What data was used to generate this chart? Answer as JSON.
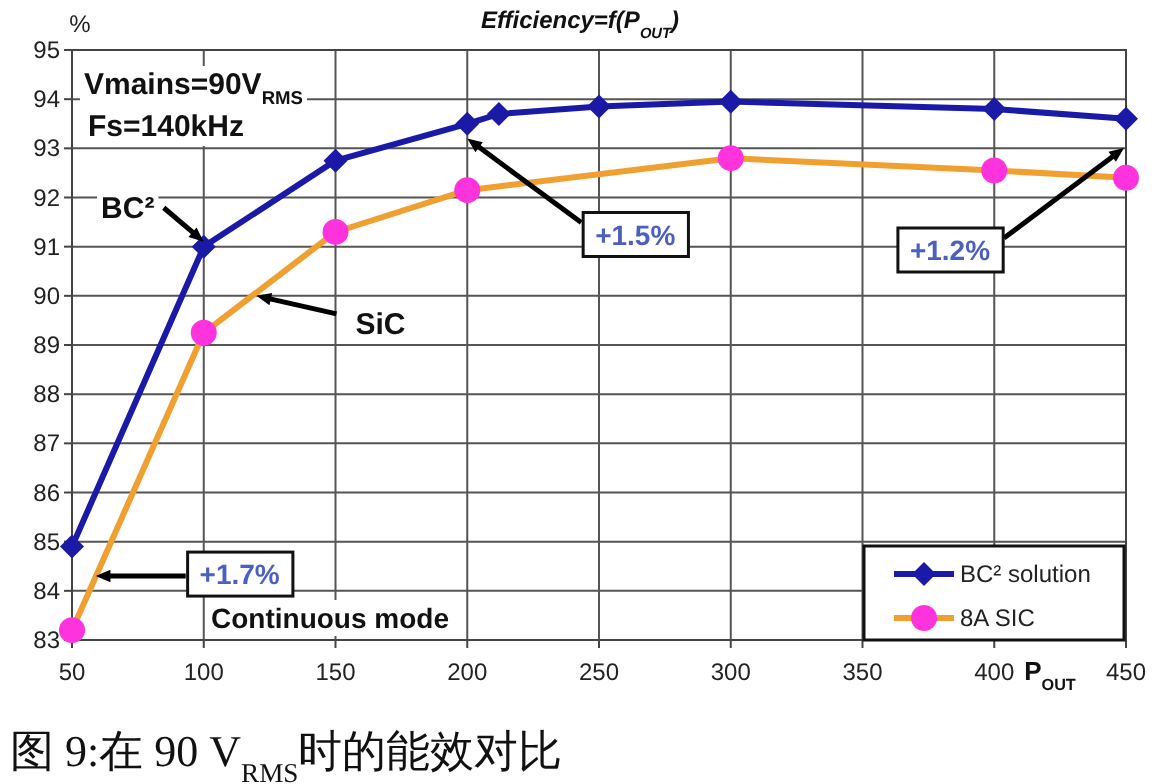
{
  "chart_data": {
    "type": "line",
    "title": "Efficiency=f(P$_{OUT}$)",
    "ylabel": "%",
    "xlabel": "P$_{OUT}$",
    "series": [
      {
        "name": "BC² solution",
        "color": "#1a1aa6",
        "marker": "diamond",
        "x": [
          50,
          100,
          150,
          200,
          212,
          250,
          300,
          400,
          450
        ],
        "values": [
          84.9,
          91.0,
          92.75,
          93.5,
          93.7,
          93.85,
          93.95,
          93.8,
          93.6
        ]
      },
      {
        "name": "8A SIC",
        "color": "#f0a030",
        "marker": "circle",
        "colors": [
          "#ff33dd",
          "#ff33dd",
          "#ff33dd",
          "#ff33dd",
          "#ff33dd",
          "#ff33dd",
          "#ff33dd"
        ],
        "x": [
          50,
          100,
          150,
          200,
          300,
          400,
          450
        ],
        "values": [
          83.2,
          89.25,
          91.3,
          92.15,
          92.8,
          92.55,
          92.4
        ]
      }
    ],
    "xlim": [
      50,
      450
    ],
    "xticks": [
      50,
      100,
      150,
      200,
      250,
      300,
      350,
      400,
      450
    ],
    "ylim": [
      83,
      95
    ],
    "yticks": [
      83,
      84,
      85,
      86,
      87,
      88,
      89,
      90,
      91,
      92,
      93,
      94,
      95
    ],
    "grid": true,
    "legend": "bottom right",
    "annotations": [
      "Vmains=90V$_{RMS}$",
      "Fs=140kHz",
      {
        "text": "BC²",
        "x": 100,
        "y": 91.1
      },
      {
        "text": "SiC",
        "x": 120,
        "y": 90.0
      },
      {
        "text": "+1.5%",
        "x": 200,
        "y": 93.2
      },
      "+1.2%",
      {
        "text": "+1.7%",
        "x": 59,
        "y": 84.3
      },
      "Continuous mode",
      "图 9:在 90 V$_{RMS}$时的能效对比"
    ]
  }
}
